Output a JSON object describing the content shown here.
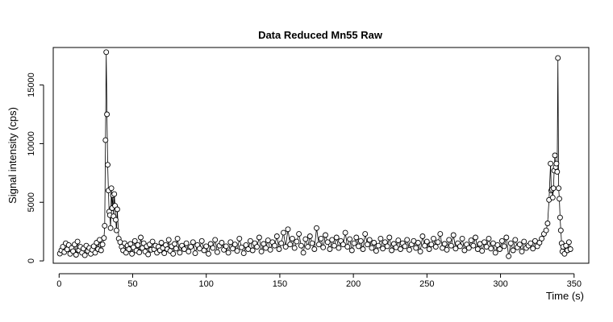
{
  "chart_data": {
    "type": "scatter",
    "title": "Data Reduced Mn55 Raw",
    "xlabel": "Time (s)",
    "ylabel": "Signal intensity (cps)",
    "xlim": [
      -4,
      360
    ],
    "ylim": [
      -200,
      18200
    ],
    "xticks": [
      0,
      50,
      100,
      150,
      200,
      250,
      300,
      350
    ],
    "yticks": [
      0,
      5000,
      10000,
      15000
    ],
    "grid": false,
    "legend": "none",
    "point_style": "open-circle",
    "point_color": "#000000",
    "series": [
      {
        "points": [
          [
            0.5,
            620
          ],
          [
            1.5,
            900
          ],
          [
            2.5,
            1200
          ],
          [
            3.5,
            750
          ],
          [
            4.5,
            1500
          ],
          [
            5.5,
            980
          ],
          [
            6.5,
            1350
          ],
          [
            7.5,
            600
          ],
          [
            8.5,
            1100
          ],
          [
            9.5,
            820
          ],
          [
            10.5,
            1400
          ],
          [
            11.5,
            520
          ],
          [
            12.5,
            1650
          ],
          [
            13.5,
            900
          ],
          [
            14.5,
            1200
          ],
          [
            15.5,
            700
          ],
          [
            16.5,
            1050
          ],
          [
            17.5,
            480
          ],
          [
            18.5,
            1300
          ],
          [
            19.5,
            850
          ],
          [
            20.5,
            1100
          ],
          [
            21.5,
            600
          ],
          [
            22.5,
            950
          ],
          [
            23.5,
            1250
          ],
          [
            24.5,
            700
          ],
          [
            25.5,
            1550
          ],
          [
            26.5,
            1000
          ],
          [
            27.5,
            1800
          ],
          [
            28.5,
            900
          ],
          [
            29.5,
            1400
          ],
          [
            30.5,
            1950
          ],
          [
            31.0,
            3000
          ],
          [
            31.5,
            10300
          ],
          [
            32.0,
            17800
          ],
          [
            32.5,
            12500
          ],
          [
            33.0,
            8200
          ],
          [
            33.5,
            6000
          ],
          [
            34.0,
            4200
          ],
          [
            34.5,
            3900
          ],
          [
            35.0,
            2800
          ],
          [
            35.5,
            6200
          ],
          [
            36.0,
            4500
          ],
          [
            36.5,
            5600
          ],
          [
            37.0,
            3800
          ],
          [
            37.5,
            5700
          ],
          [
            38.0,
            4700
          ],
          [
            38.5,
            3500
          ],
          [
            39.0,
            2600
          ],
          [
            39.5,
            4400
          ],
          [
            40.5,
            1900
          ],
          [
            41.5,
            1600
          ],
          [
            42.5,
            1200
          ],
          [
            43.5,
            900
          ],
          [
            44.5,
            1500
          ],
          [
            45.5,
            700
          ],
          [
            46.5,
            1300
          ],
          [
            47.5,
            1000
          ],
          [
            48.5,
            1450
          ],
          [
            49.5,
            600
          ],
          [
            50.5,
            1150
          ],
          [
            51.5,
            1700
          ],
          [
            52.5,
            880
          ],
          [
            53.5,
            1350
          ],
          [
            54.5,
            720
          ],
          [
            55.5,
            2000
          ],
          [
            56.5,
            1100
          ],
          [
            57.5,
            1500
          ],
          [
            58.5,
            800
          ],
          [
            59.5,
            1250
          ],
          [
            60.5,
            550
          ],
          [
            61.5,
            1400
          ],
          [
            62.5,
            950
          ],
          [
            63.5,
            1650
          ],
          [
            64.5,
            1000
          ],
          [
            65.5,
            1300
          ],
          [
            66.5,
            700
          ],
          [
            67.5,
            1200
          ],
          [
            68.5,
            900
          ],
          [
            69.5,
            1550
          ],
          [
            70.5,
            1100
          ],
          [
            71.5,
            650
          ],
          [
            72.5,
            1350
          ],
          [
            73.5,
            1000
          ],
          [
            74.5,
            1800
          ],
          [
            75.5,
            850
          ],
          [
            76.5,
            1250
          ],
          [
            77.5,
            600
          ],
          [
            78.5,
            1450
          ],
          [
            79.5,
            1050
          ],
          [
            80.5,
            1900
          ],
          [
            82.0,
            700
          ],
          [
            83.5,
            1300
          ],
          [
            85.0,
            1000
          ],
          [
            86.5,
            1500
          ],
          [
            88.0,
            800
          ],
          [
            89.5,
            1200
          ],
          [
            91.0,
            1600
          ],
          [
            92.5,
            650
          ],
          [
            94.0,
            1350
          ],
          [
            95.5,
            1050
          ],
          [
            97.0,
            1700
          ],
          [
            98.5,
            900
          ],
          [
            100.0,
            1250
          ],
          [
            101.5,
            600
          ],
          [
            103.0,
            1450
          ],
          [
            104.5,
            1100
          ],
          [
            106.0,
            1800
          ],
          [
            107.5,
            750
          ],
          [
            109.0,
            1300
          ],
          [
            110.5,
            1550
          ],
          [
            112.0,
            950
          ],
          [
            113.5,
            1250
          ],
          [
            115.0,
            700
          ],
          [
            116.5,
            1600
          ],
          [
            118.0,
            1050
          ],
          [
            119.5,
            1400
          ],
          [
            121.0,
            850
          ],
          [
            122.5,
            1900
          ],
          [
            124.0,
            1150
          ],
          [
            125.5,
            650
          ],
          [
            127.0,
            1350
          ],
          [
            128.5,
            1000
          ],
          [
            130.0,
            1700
          ],
          [
            131.5,
            900
          ],
          [
            133.0,
            1500
          ],
          [
            134.5,
            1200
          ],
          [
            136.0,
            2000
          ],
          [
            137.5,
            800
          ],
          [
            139.0,
            1450
          ],
          [
            140.5,
            1100
          ],
          [
            142.0,
            1750
          ],
          [
            143.5,
            950
          ],
          [
            145.0,
            1600
          ],
          [
            146.5,
            1300
          ],
          [
            148.0,
            2100
          ],
          [
            149.5,
            1000
          ],
          [
            151.0,
            1500
          ],
          [
            152.5,
            2400
          ],
          [
            154.0,
            1200
          ],
          [
            155.5,
            2700
          ],
          [
            157.0,
            1400
          ],
          [
            158.5,
            1900
          ],
          [
            160.0,
            1100
          ],
          [
            161.5,
            1650
          ],
          [
            163.0,
            2300
          ],
          [
            164.5,
            1300
          ],
          [
            166.0,
            700
          ],
          [
            167.5,
            1850
          ],
          [
            169.0,
            1200
          ],
          [
            170.5,
            2100
          ],
          [
            172.0,
            1500
          ],
          [
            173.5,
            1000
          ],
          [
            175.0,
            2800
          ],
          [
            176.5,
            1400
          ],
          [
            178.0,
            1900
          ],
          [
            179.5,
            1150
          ],
          [
            181.0,
            2200
          ],
          [
            182.5,
            1600
          ],
          [
            184.0,
            1000
          ],
          [
            185.5,
            1800
          ],
          [
            187.0,
            1300
          ],
          [
            188.5,
            2000
          ],
          [
            190.0,
            1100
          ],
          [
            191.5,
            1700
          ],
          [
            193.0,
            1400
          ],
          [
            194.5,
            2400
          ],
          [
            196.0,
            1200
          ],
          [
            197.5,
            1850
          ],
          [
            199.0,
            900
          ],
          [
            200.5,
            1500
          ],
          [
            202.0,
            2000
          ],
          [
            203.5,
            1250
          ],
          [
            205.0,
            1700
          ],
          [
            206.5,
            1000
          ],
          [
            208.0,
            2300
          ],
          [
            209.5,
            1400
          ],
          [
            211.0,
            1800
          ],
          [
            212.5,
            1100
          ],
          [
            214.0,
            1550
          ],
          [
            215.5,
            850
          ],
          [
            217.0,
            1300
          ],
          [
            218.5,
            1900
          ],
          [
            220.0,
            1050
          ],
          [
            221.5,
            1600
          ],
          [
            223.0,
            1250
          ],
          [
            224.5,
            2000
          ],
          [
            226.0,
            900
          ],
          [
            227.5,
            1450
          ],
          [
            229.0,
            1150
          ],
          [
            230.5,
            1750
          ],
          [
            232.0,
            1000
          ],
          [
            233.5,
            1500
          ],
          [
            235.0,
            1250
          ],
          [
            236.5,
            1800
          ],
          [
            238.0,
            950
          ],
          [
            239.5,
            1400
          ],
          [
            241.0,
            1700
          ],
          [
            242.5,
            1100
          ],
          [
            244.0,
            1550
          ],
          [
            245.5,
            800
          ],
          [
            247.0,
            2100
          ],
          [
            248.5,
            1300
          ],
          [
            250.0,
            1650
          ],
          [
            251.5,
            1000
          ],
          [
            253.0,
            1400
          ],
          [
            254.5,
            1900
          ],
          [
            256.0,
            1200
          ],
          [
            257.5,
            1600
          ],
          [
            259.0,
            2300
          ],
          [
            260.5,
            1100
          ],
          [
            262.0,
            1450
          ],
          [
            263.5,
            950
          ],
          [
            265.0,
            1800
          ],
          [
            266.5,
            1300
          ],
          [
            268.0,
            2200
          ],
          [
            269.5,
            1050
          ],
          [
            271.0,
            1500
          ],
          [
            272.5,
            1250
          ],
          [
            274.0,
            1900
          ],
          [
            275.5,
            900
          ],
          [
            277.0,
            1400
          ],
          [
            278.5,
            1100
          ],
          [
            280.0,
            1750
          ],
          [
            281.5,
            1300
          ],
          [
            283.0,
            2000
          ],
          [
            284.5,
            1000
          ],
          [
            286.0,
            1450
          ],
          [
            287.5,
            850
          ],
          [
            289.0,
            1600
          ],
          [
            290.5,
            1200
          ],
          [
            292.0,
            1900
          ],
          [
            293.5,
            1050
          ],
          [
            295.0,
            1500
          ],
          [
            296.5,
            700
          ],
          [
            298.0,
            1350
          ],
          [
            299.5,
            1000
          ],
          [
            301.0,
            1700
          ],
          [
            302.5,
            1250
          ],
          [
            304.0,
            2000
          ],
          [
            305.5,
            400
          ],
          [
            307.0,
            1500
          ],
          [
            308.5,
            900
          ],
          [
            310.0,
            1800
          ],
          [
            311.5,
            1150
          ],
          [
            313.0,
            1400
          ],
          [
            314.5,
            800
          ],
          [
            316.0,
            1650
          ],
          [
            317.5,
            1100
          ],
          [
            319.0,
            1300
          ],
          [
            320.5,
            1500
          ],
          [
            322.0,
            1050
          ],
          [
            323.5,
            1700
          ],
          [
            325.0,
            1250
          ],
          [
            326.5,
            1550
          ],
          [
            328.0,
            1900
          ],
          [
            329.5,
            2300
          ],
          [
            331.0,
            2600
          ],
          [
            332.0,
            3200
          ],
          [
            333.0,
            5200
          ],
          [
            334.0,
            8300
          ],
          [
            334.5,
            6000
          ],
          [
            335.0,
            6100
          ],
          [
            335.5,
            5400
          ],
          [
            336.0,
            6200
          ],
          [
            336.5,
            7700
          ],
          [
            337.0,
            9000
          ],
          [
            337.5,
            8000
          ],
          [
            338.0,
            8300
          ],
          [
            338.5,
            7600
          ],
          [
            339.0,
            17300
          ],
          [
            339.5,
            6200
          ],
          [
            340.0,
            5300
          ],
          [
            340.5,
            3700
          ],
          [
            341.0,
            2600
          ],
          [
            341.5,
            1500
          ],
          [
            342.0,
            800
          ],
          [
            342.5,
            1200
          ],
          [
            343.5,
            600
          ],
          [
            344.5,
            1300
          ],
          [
            345.5,
            900
          ],
          [
            346.5,
            1600
          ],
          [
            347.5,
            1000
          ]
        ]
      }
    ]
  }
}
